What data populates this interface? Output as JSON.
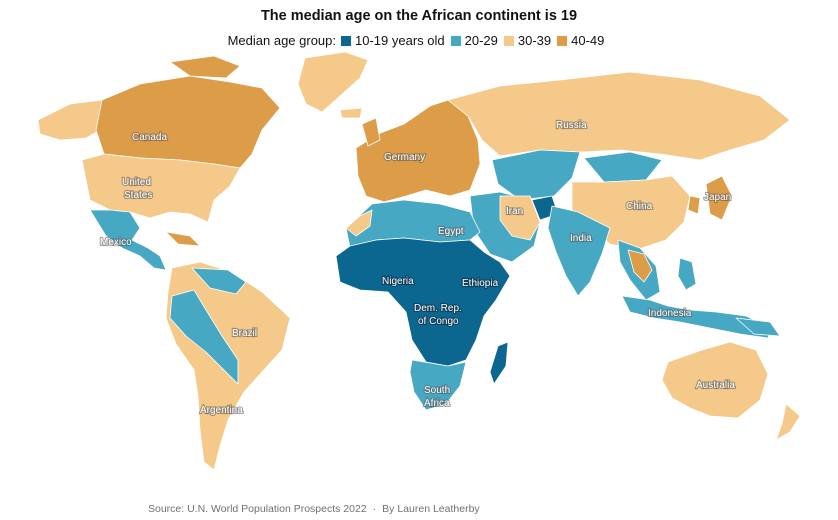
{
  "title": "The median age on the African continent is 19",
  "legend": {
    "title": "Median age group:",
    "items": [
      {
        "label": "10-19 years old",
        "color": "#0b6690"
      },
      {
        "label": "20-29",
        "color": "#47a8c4"
      },
      {
        "label": "30-39",
        "color": "#f4c98a"
      },
      {
        "label": "40-49",
        "color": "#dd9c48"
      }
    ]
  },
  "map_labels": {
    "canada": "Canada",
    "united_states_1": "United",
    "united_states_2": "States",
    "mexico": "Mexico",
    "brazil": "Brazil",
    "argentina": "Argentina",
    "germany": "Germany",
    "russia": "Russia",
    "china": "China",
    "japan": "Japan",
    "iran": "Iran",
    "india": "India",
    "egypt": "Egypt",
    "nigeria": "Nigeria",
    "ethiopia": "Ethiopia",
    "drc_1": "Dem. Rep.",
    "drc_2": "of Congo",
    "south_africa_1": "South",
    "south_africa_2": "Africa",
    "indonesia": "Indonesia",
    "australia": "Australia"
  },
  "footer": {
    "source": "Source: U.N. World Population Prospects 2022",
    "separator": "·",
    "byline": "By Lauren Leatherby"
  }
}
